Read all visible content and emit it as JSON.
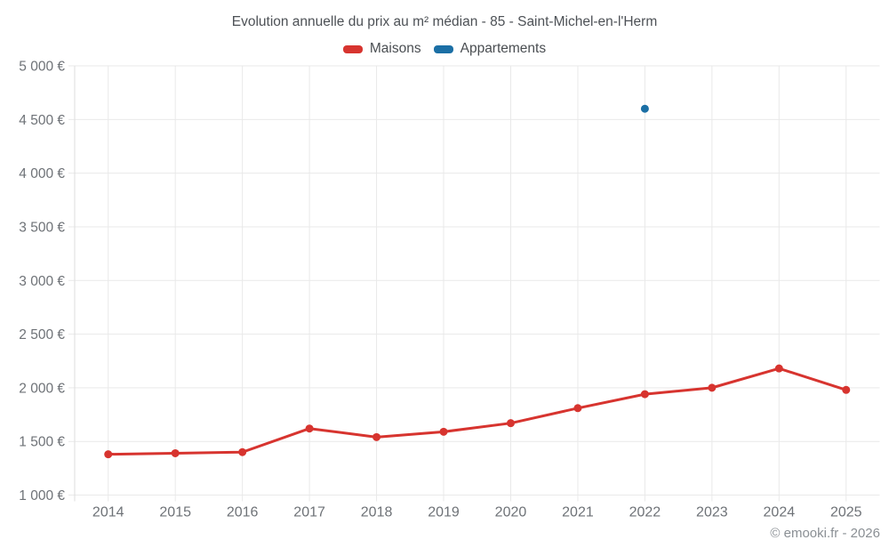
{
  "header": {
    "title": "Evolution annuelle du prix au m² médian - 85 - Saint-Michel-en-l'Herm"
  },
  "footer": {
    "credit": "© emooki.fr - 2026"
  },
  "chart_data": {
    "type": "line",
    "title": "Evolution annuelle du prix au m² médian - 85 - Saint-Michel-en-l'Herm",
    "categories": [
      "2014",
      "2015",
      "2016",
      "2017",
      "2018",
      "2019",
      "2020",
      "2021",
      "2022",
      "2023",
      "2024",
      "2025"
    ],
    "series": [
      {
        "name": "Maisons",
        "color": "#d7342f",
        "values": [
          1380,
          1390,
          1400,
          1620,
          1540,
          1590,
          1670,
          1810,
          1940,
          2000,
          2180,
          1980
        ]
      },
      {
        "name": "Appartements",
        "color": "#1b6fa5",
        "values": [
          null,
          null,
          null,
          null,
          null,
          null,
          null,
          null,
          4600,
          null,
          null,
          null
        ]
      }
    ],
    "xlabel": "",
    "ylabel": "",
    "ylim": [
      1000,
      5000
    ],
    "ytick_step": 500,
    "ytick_suffix": " €",
    "grid": true,
    "legend_position": "top",
    "grid_color": "#e9e9e9",
    "axis_color": "#dedede",
    "tick_label_color": "#6e7277"
  }
}
